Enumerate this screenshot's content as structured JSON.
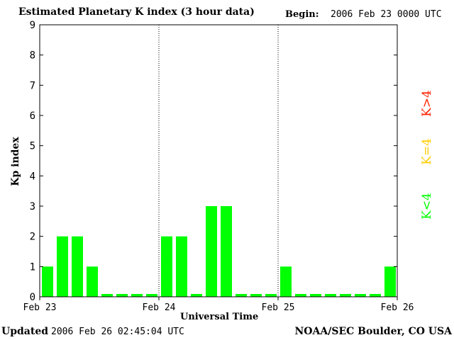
{
  "header": {
    "title": "Estimated Planetary K index (3 hour data)",
    "begin_label": "Begin:",
    "begin_value": "2006 Feb 23 0000 UTC"
  },
  "footer": {
    "updated_label": "Updated",
    "updated_value": "2006 Feb 26 02:45:04 UTC",
    "credit": "NOAA/SEC Boulder, CO USA"
  },
  "legend": {
    "high": "K>4",
    "eq": "K=4",
    "low": "K<4"
  },
  "colors": {
    "low": "#00ff00",
    "eq": "#ffcc00",
    "high": "#ff2200",
    "axis": "#000000"
  },
  "chart_data": {
    "type": "bar",
    "title": "Estimated Planetary K index (3 hour data)",
    "xlabel": "Universal Time",
    "ylabel": "Kp index",
    "ylim": [
      0,
      9
    ],
    "yticks": [
      "0",
      "1",
      "2",
      "3",
      "4",
      "5",
      "6",
      "7",
      "8",
      "9"
    ],
    "x_tick_labels": [
      "Feb 23",
      "Feb 24",
      "Feb 25",
      "Feb 26"
    ],
    "day_separators": [
      "Feb 24",
      "Feb 25"
    ],
    "grid": false,
    "bars_per_day": 8,
    "values": [
      1,
      2,
      2,
      1,
      0,
      0,
      0,
      0,
      2,
      2,
      0,
      3,
      3,
      0,
      0,
      0,
      1,
      0,
      0,
      0,
      0,
      0,
      0,
      1
    ]
  }
}
